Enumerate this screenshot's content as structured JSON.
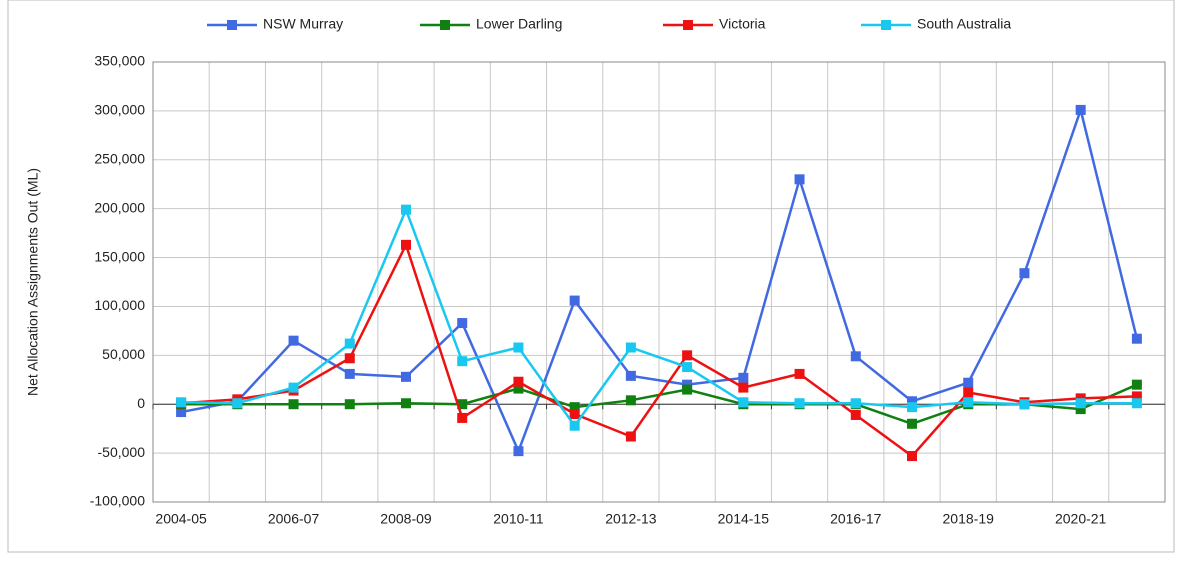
{
  "chart_data": {
    "type": "line",
    "y_label": "Net Allocation Assignments Out (ML)",
    "categories": [
      "2004-05",
      null,
      "2006-07",
      null,
      "2008-09",
      null,
      "2010-11",
      null,
      "2012-13",
      null,
      "2014-15",
      null,
      "2016-17",
      null,
      "2018-19",
      null,
      "2020-21",
      null
    ],
    "series": [
      {
        "name": "NSW Murray",
        "color": "#4169e1",
        "values": [
          -8000,
          3000,
          65000,
          31000,
          28000,
          83000,
          -48000,
          106000,
          29000,
          20000,
          27000,
          230000,
          49000,
          3000,
          22000,
          134000,
          301000,
          67000
        ]
      },
      {
        "name": "Lower Darling",
        "color": "#108010",
        "values": [
          0,
          0,
          0,
          0,
          1000,
          0,
          16000,
          -3000,
          4000,
          15000,
          0,
          0,
          0,
          -20000,
          0,
          0,
          -5000,
          20000
        ]
      },
      {
        "name": "Victoria",
        "color": "#ee1111",
        "values": [
          1000,
          5000,
          14000,
          47000,
          163000,
          -14000,
          23000,
          -10000,
          -33000,
          50000,
          17000,
          31000,
          -11000,
          -53000,
          12000,
          2000,
          6000,
          8000
        ]
      },
      {
        "name": "South Australia",
        "color": "#18c8f0",
        "values": [
          2000,
          1000,
          17000,
          62000,
          199000,
          44000,
          58000,
          -22000,
          58000,
          38000,
          2000,
          1000,
          1000,
          -3000,
          2000,
          0,
          1000,
          1000
        ]
      }
    ],
    "ylim": [
      -100000,
      350000
    ],
    "yticks": [
      {
        "value": -100000,
        "label": "-100,000"
      },
      {
        "value": -50000,
        "label": "-50,000"
      },
      0,
      {
        "value": 50000,
        "label": "50,000"
      },
      {
        "value": 100000,
        "label": "100,000"
      },
      {
        "value": 150000,
        "label": "150,000"
      },
      {
        "value": 200000,
        "label": "200,000"
      },
      {
        "value": 250000,
        "label": "250,000"
      },
      {
        "value": 300000,
        "label": "300,000"
      },
      {
        "value": 350000,
        "label": "350,000"
      }
    ],
    "grid": true,
    "legend": "top"
  }
}
